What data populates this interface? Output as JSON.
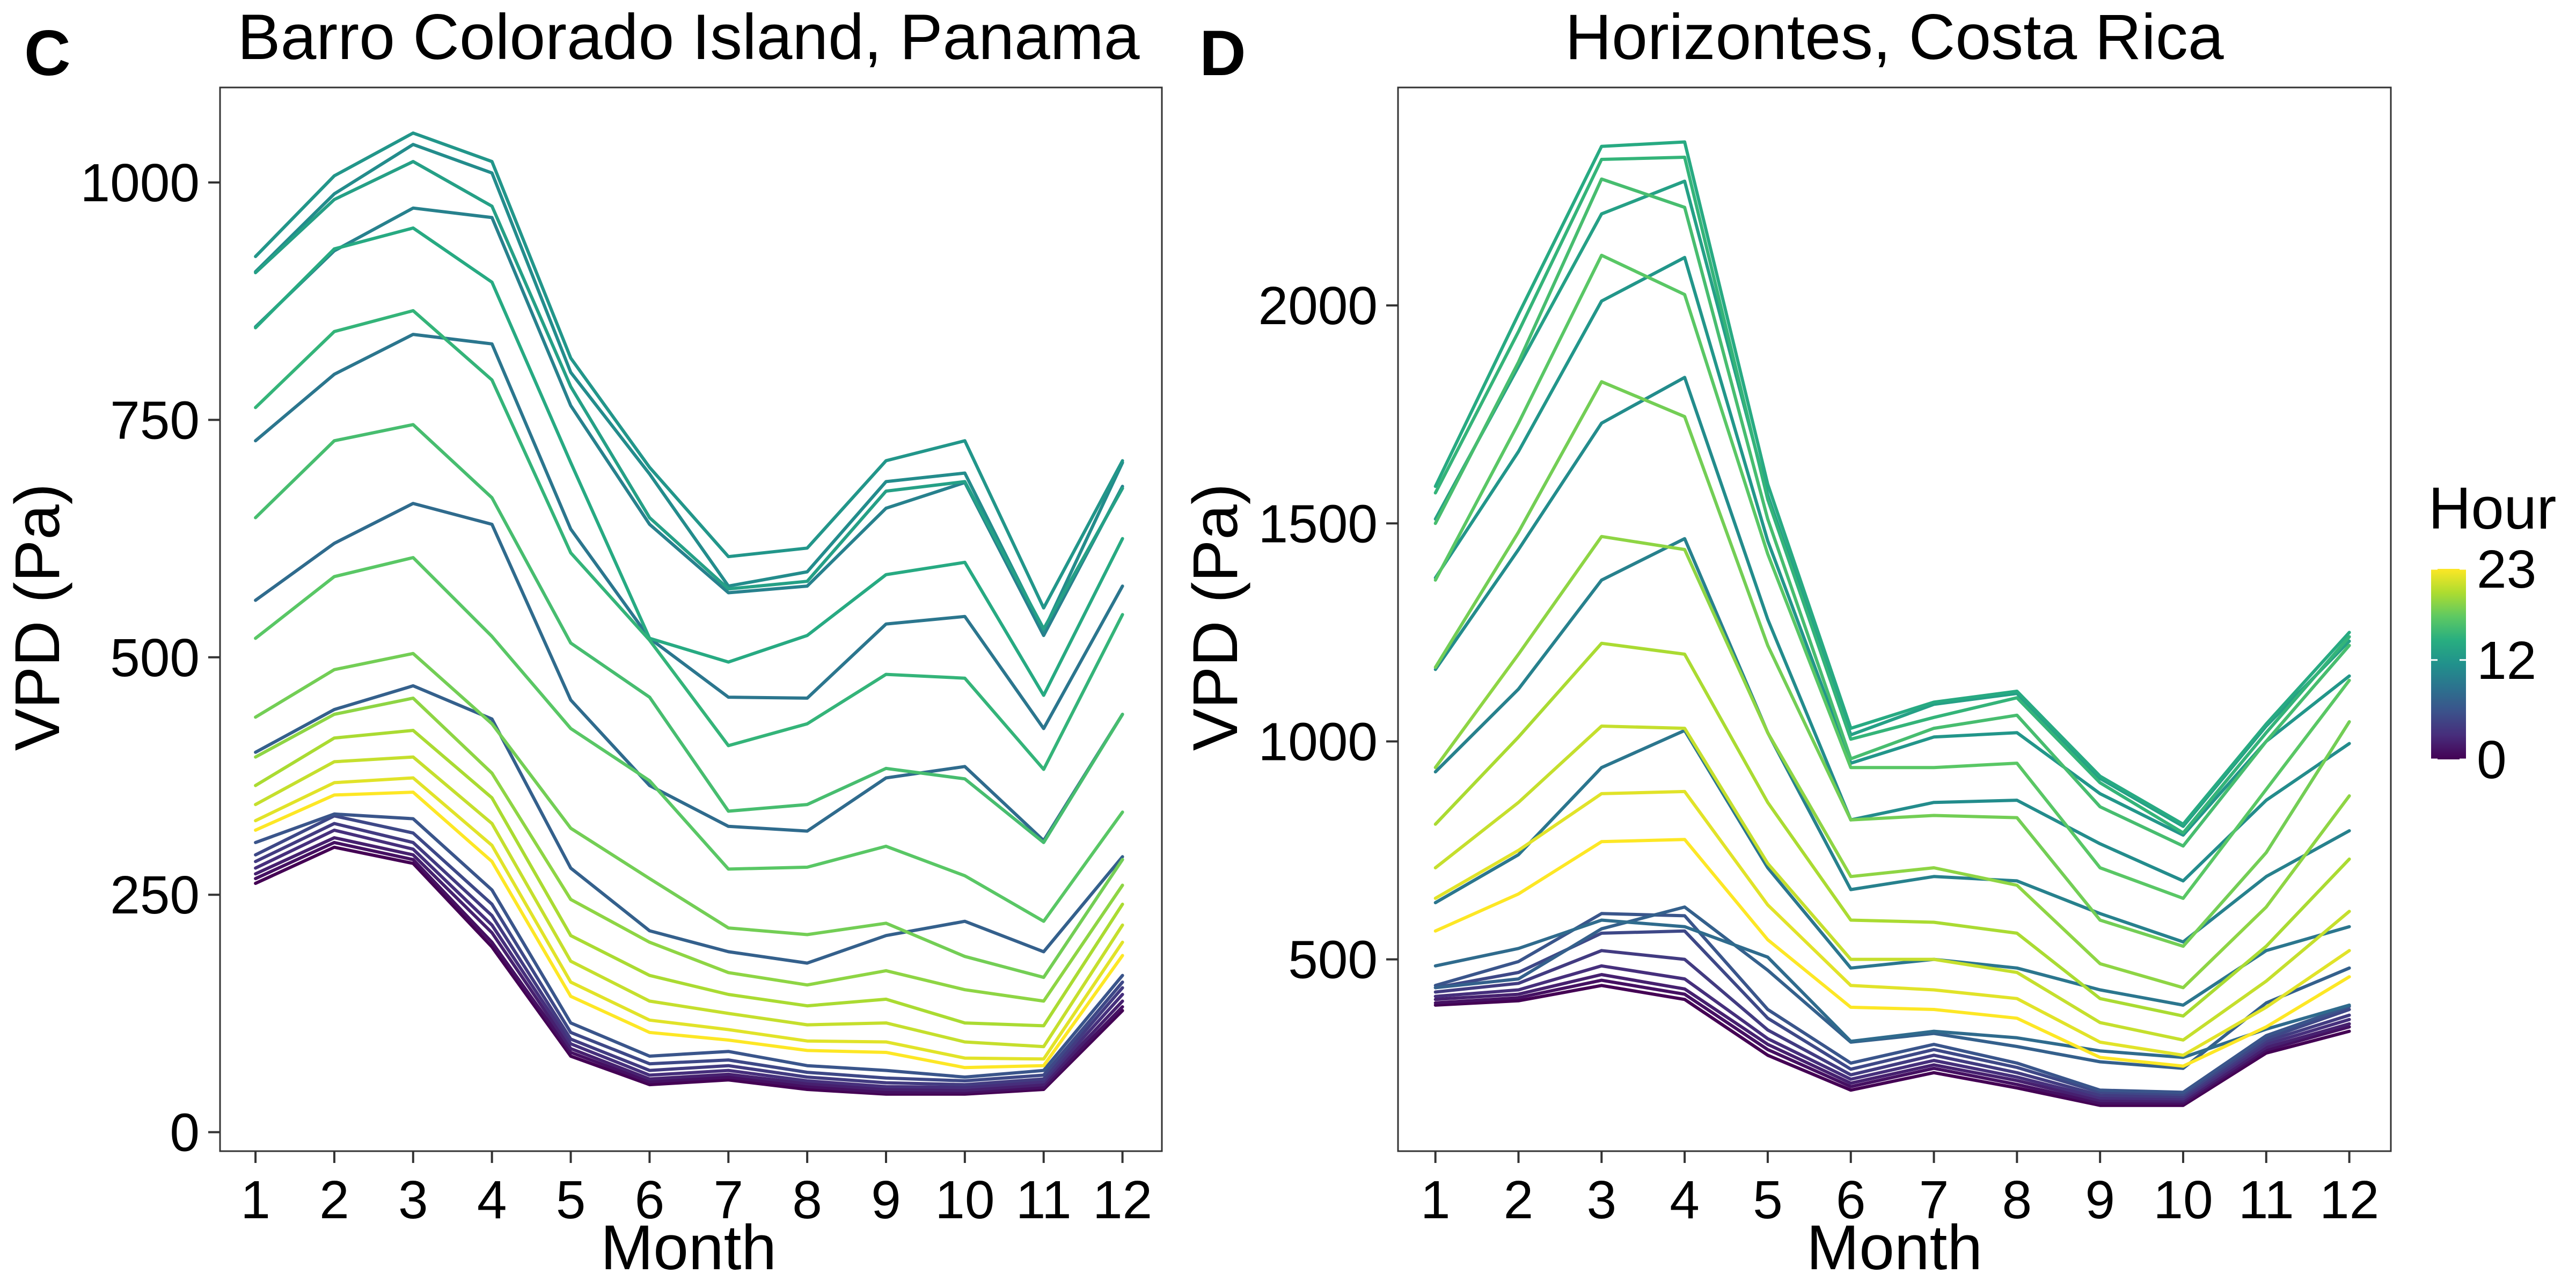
{
  "colorbar": {
    "title": "Hour",
    "min": 0,
    "max": 23,
    "ticks": [
      0,
      12,
      23
    ],
    "palette": [
      "#440154",
      "#472d7b",
      "#3b528b",
      "#2c728e",
      "#21918c",
      "#28ae80",
      "#5ec962",
      "#addc30",
      "#fde725"
    ]
  },
  "chart_data": [
    {
      "type": "line",
      "panel_letter": "C",
      "title": "Barro Colorado Island, Panama",
      "xlabel": "Month",
      "ylabel": "VPD (Pa)",
      "x": [
        1,
        2,
        3,
        4,
        5,
        6,
        7,
        8,
        9,
        10,
        11,
        12
      ],
      "xlim": [
        0.55,
        12.5
      ],
      "ylim": [
        -20,
        1100
      ],
      "yticks": [
        0,
        250,
        500,
        750,
        1000
      ],
      "series": [
        {
          "hour": 0,
          "values": [
            262,
            300,
            283,
            195,
            80,
            50,
            55,
            45,
            40,
            40,
            45,
            128
          ]
        },
        {
          "hour": 1,
          "values": [
            267,
            305,
            287,
            200,
            84,
            53,
            58,
            48,
            42,
            42,
            47,
            132
          ]
        },
        {
          "hour": 2,
          "values": [
            272,
            310,
            292,
            210,
            88,
            56,
            61,
            51,
            45,
            44,
            50,
            138
          ]
        },
        {
          "hour": 3,
          "values": [
            278,
            318,
            298,
            218,
            93,
            60,
            65,
            54,
            48,
            47,
            53,
            145
          ]
        },
        {
          "hour": 4,
          "values": [
            285,
            325,
            305,
            228,
            98,
            65,
            70,
            58,
            52,
            50,
            56,
            152
          ]
        },
        {
          "hour": 5,
          "values": [
            292,
            333,
            315,
            240,
            105,
            72,
            76,
            63,
            57,
            54,
            60,
            158
          ]
        },
        {
          "hour": 6,
          "values": [
            305,
            335,
            330,
            255,
            115,
            80,
            85,
            70,
            65,
            58,
            65,
            165
          ]
        },
        {
          "hour": 7,
          "values": [
            400,
            445,
            470,
            435,
            278,
            212,
            190,
            178,
            207,
            222,
            190,
            290
          ]
        },
        {
          "hour": 8,
          "values": [
            560,
            620,
            662,
            640,
            455,
            365,
            322,
            317,
            373,
            385,
            307,
            440
          ]
        },
        {
          "hour": 9,
          "values": [
            728,
            798,
            840,
            830,
            635,
            520,
            458,
            457,
            535,
            543,
            425,
            575
          ]
        },
        {
          "hour": 10,
          "values": [
            848,
            928,
            973,
            963,
            765,
            640,
            568,
            575,
            657,
            684,
            523,
            680
          ]
        },
        {
          "hour": 11,
          "values": [
            906,
            988,
            1040,
            1010,
            800,
            693,
            575,
            590,
            685,
            694,
            528,
            705
          ]
        },
        {
          "hour": 12,
          "values": [
            922,
            1007,
            1052,
            1022,
            815,
            700,
            606,
            615,
            707,
            728,
            552,
            707
          ]
        },
        {
          "hour": 13,
          "values": [
            905,
            982,
            1022,
            975,
            785,
            647,
            572,
            580,
            675,
            685,
            530,
            678
          ]
        },
        {
          "hour": 14,
          "values": [
            847,
            930,
            952,
            895,
            705,
            520,
            495,
            523,
            587,
            600,
            460,
            625
          ]
        },
        {
          "hour": 15,
          "values": [
            763,
            843,
            865,
            792,
            610,
            518,
            407,
            430,
            482,
            478,
            382,
            545
          ]
        },
        {
          "hour": 16,
          "values": [
            647,
            728,
            745,
            668,
            515,
            458,
            338,
            345,
            383,
            372,
            305,
            440
          ]
        },
        {
          "hour": 17,
          "values": [
            520,
            585,
            605,
            522,
            425,
            370,
            277,
            279,
            301,
            270,
            222,
            337
          ]
        },
        {
          "hour": 18,
          "values": [
            437,
            487,
            504,
            430,
            320,
            267,
            215,
            208,
            220,
            185,
            163,
            287
          ]
        },
        {
          "hour": 19,
          "values": [
            395,
            440,
            457,
            378,
            245,
            200,
            168,
            155,
            170,
            150,
            138,
            260
          ]
        },
        {
          "hour": 20,
          "values": [
            365,
            415,
            423,
            352,
            207,
            165,
            145,
            133,
            140,
            115,
            112,
            240
          ]
        },
        {
          "hour": 21,
          "values": [
            345,
            390,
            395,
            325,
            180,
            138,
            125,
            113,
            115,
            95,
            90,
            218
          ]
        },
        {
          "hour": 22,
          "values": [
            328,
            368,
            373,
            302,
            158,
            118,
            108,
            96,
            95,
            78,
            77,
            200
          ]
        },
        {
          "hour": 23,
          "values": [
            318,
            355,
            358,
            285,
            143,
            105,
            97,
            86,
            84,
            68,
            70,
            186
          ]
        }
      ]
    },
    {
      "type": "line",
      "panel_letter": "D",
      "title": "Horizontes, Costa Rica",
      "xlabel": "Month",
      "ylabel": "VPD (Pa)",
      "x": [
        1,
        2,
        3,
        4,
        5,
        6,
        7,
        8,
        9,
        10,
        11,
        12
      ],
      "xlim": [
        0.55,
        12.5
      ],
      "ylim": [
        60,
        2500
      ],
      "yticks": [
        500,
        1000,
        1500,
        2000
      ],
      "series": [
        {
          "hour": 0,
          "values": [
            395,
            405,
            440,
            408,
            280,
            200,
            240,
            205,
            165,
            165,
            285,
            335
          ]
        },
        {
          "hour": 1,
          "values": [
            400,
            412,
            452,
            420,
            293,
            208,
            250,
            213,
            170,
            170,
            292,
            345
          ]
        },
        {
          "hour": 2,
          "values": [
            408,
            420,
            465,
            432,
            305,
            216,
            258,
            222,
            176,
            175,
            298,
            352
          ]
        },
        {
          "hour": 3,
          "values": [
            415,
            430,
            485,
            455,
            318,
            225,
            268,
            230,
            182,
            180,
            305,
            362
          ]
        },
        {
          "hour": 4,
          "values": [
            425,
            445,
            520,
            500,
            338,
            235,
            280,
            240,
            188,
            185,
            312,
            372
          ]
        },
        {
          "hour": 5,
          "values": [
            435,
            470,
            560,
            565,
            365,
            248,
            293,
            252,
            195,
            190,
            318,
            385
          ]
        },
        {
          "hour": 6,
          "values": [
            440,
            495,
            605,
            600,
            385,
            262,
            305,
            262,
            200,
            195,
            325,
            392
          ]
        },
        {
          "hour": 7,
          "values": [
            435,
            455,
            570,
            620,
            475,
            310,
            330,
            300,
            265,
            250,
            400,
            480
          ]
        },
        {
          "hour": 8,
          "values": [
            485,
            525,
            590,
            575,
            505,
            312,
            335,
            320,
            290,
            275,
            340,
            395
          ]
        },
        {
          "hour": 9,
          "values": [
            630,
            740,
            940,
            1025,
            710,
            480,
            500,
            480,
            430,
            395,
            520,
            575
          ]
        },
        {
          "hour": 10,
          "values": [
            930,
            1120,
            1370,
            1465,
            1020,
            660,
            690,
            680,
            605,
            540,
            690,
            795
          ]
        },
        {
          "hour": 11,
          "values": [
            1165,
            1440,
            1730,
            1835,
            1280,
            820,
            860,
            865,
            765,
            680,
            865,
            995
          ]
        },
        {
          "hour": 12,
          "values": [
            1375,
            1665,
            2010,
            2110,
            1460,
            950,
            1010,
            1020,
            880,
            785,
            1000,
            1150
          ]
        },
        {
          "hour": 13,
          "values": [
            1510,
            1860,
            2210,
            2285,
            1565,
            1015,
            1085,
            1110,
            915,
            805,
            1035,
            1230
          ]
        },
        {
          "hour": 14,
          "values": [
            1585,
            1980,
            2365,
            2375,
            1590,
            1030,
            1090,
            1115,
            920,
            810,
            1040,
            1250
          ]
        },
        {
          "hour": 15,
          "values": [
            1570,
            1940,
            2335,
            2340,
            1555,
            1005,
            1055,
            1100,
            905,
            790,
            1020,
            1240
          ]
        },
        {
          "hour": 16,
          "values": [
            1500,
            1870,
            2290,
            2225,
            1510,
            960,
            1030,
            1060,
            850,
            760,
            1000,
            1220
          ]
        },
        {
          "hour": 17,
          "values": [
            1370,
            1730,
            2115,
            2025,
            1430,
            940,
            940,
            950,
            710,
            640,
            890,
            1140
          ]
        },
        {
          "hour": 18,
          "values": [
            1170,
            1480,
            1825,
            1745,
            1220,
            820,
            830,
            825,
            590,
            530,
            745,
            1045
          ]
        },
        {
          "hour": 19,
          "values": [
            940,
            1200,
            1470,
            1440,
            1020,
            690,
            710,
            670,
            490,
            435,
            620,
            875
          ]
        },
        {
          "hour": 20,
          "values": [
            810,
            1010,
            1225,
            1200,
            860,
            590,
            585,
            560,
            410,
            370,
            530,
            730
          ]
        },
        {
          "hour": 21,
          "values": [
            710,
            860,
            1035,
            1030,
            720,
            500,
            500,
            470,
            355,
            315,
            450,
            610
          ]
        },
        {
          "hour": 22,
          "values": [
            640,
            750,
            880,
            885,
            625,
            440,
            430,
            410,
            310,
            280,
            390,
            520
          ]
        },
        {
          "hour": 23,
          "values": [
            565,
            650,
            770,
            775,
            545,
            390,
            385,
            365,
            275,
            255,
            345,
            460
          ]
        }
      ]
    }
  ]
}
